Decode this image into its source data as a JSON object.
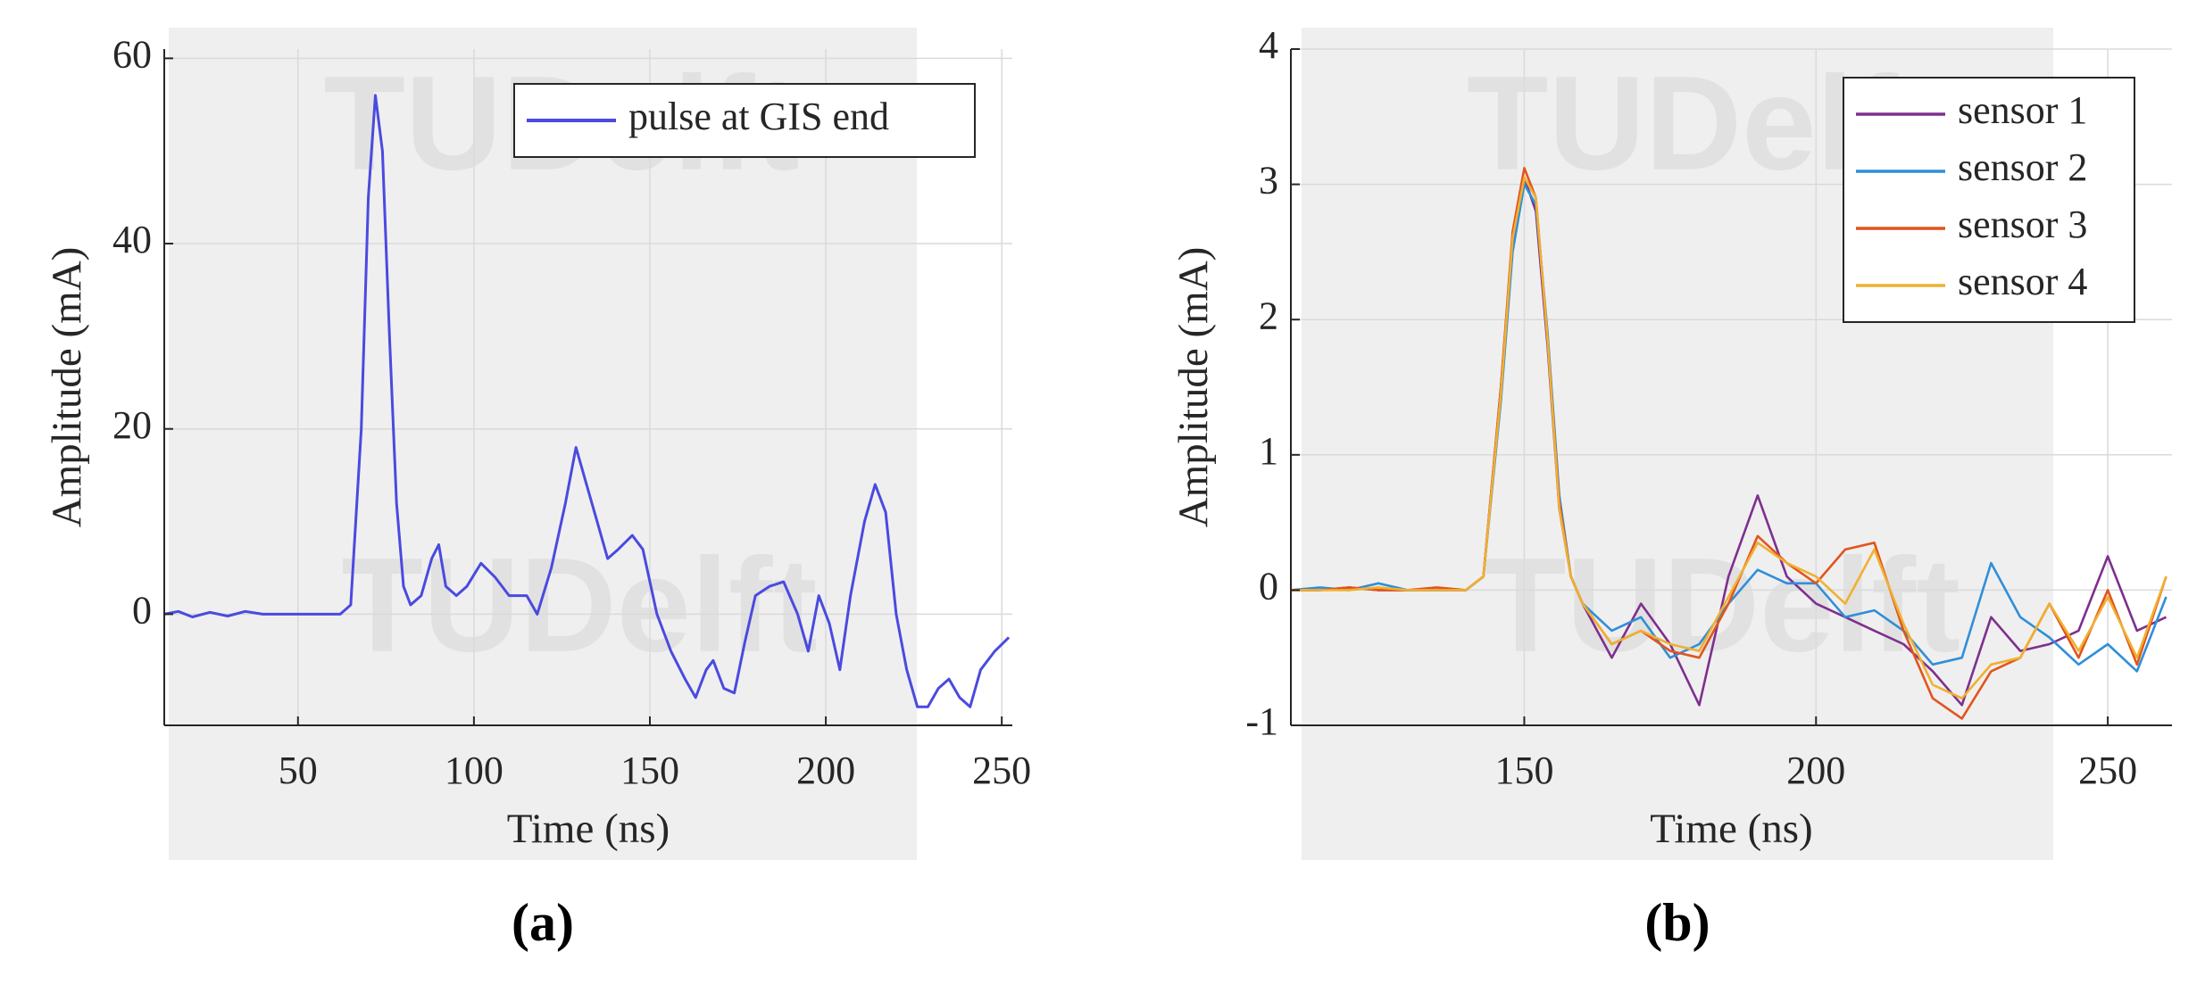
{
  "chart_data": [
    {
      "type": "line",
      "label": "(a)",
      "watermark": "TUDelft",
      "xlabel": "Time (ns)",
      "ylabel": "Amplitude (mA)",
      "xlim": [
        12,
        253
      ],
      "ylim": [
        -12,
        61
      ],
      "xticks": [
        50,
        100,
        150,
        200,
        250
      ],
      "yticks": [
        0,
        20,
        40,
        60
      ],
      "grid": true,
      "legend": "upper right",
      "x": [
        12,
        16,
        20,
        25,
        30,
        35,
        40,
        45,
        50,
        55,
        60,
        62,
        65,
        68,
        70,
        72,
        74,
        76,
        78,
        80,
        82,
        85,
        88,
        90,
        92,
        95,
        98,
        102,
        106,
        110,
        115,
        118,
        122,
        126,
        129,
        132,
        135,
        138,
        141,
        145,
        148,
        152,
        156,
        160,
        163,
        166,
        168,
        171,
        174,
        177,
        180,
        184,
        188,
        192,
        195,
        198,
        201,
        204,
        207,
        211,
        214,
        217,
        220,
        223,
        226,
        229,
        232,
        235,
        238,
        241,
        244,
        248,
        252
      ],
      "series": [
        {
          "name": "pulse at GIS end",
          "color": "#4a4ae0",
          "values": [
            0,
            0.3,
            -0.3,
            0.2,
            -0.2,
            0.3,
            0,
            0,
            0,
            0,
            0,
            0,
            1,
            20,
            45,
            56,
            50,
            30,
            12,
            3,
            1,
            2,
            6,
            7.5,
            3,
            2,
            3,
            5.5,
            4,
            2,
            2,
            0,
            5,
            12,
            18,
            14,
            10,
            6,
            7,
            8.5,
            7,
            0,
            -4,
            -7,
            -9,
            -6,
            -5,
            -8,
            -8.5,
            -3,
            2,
            3,
            3.5,
            0,
            -4,
            2,
            -1,
            -6,
            2,
            10,
            14,
            11,
            0,
            -6,
            -10,
            -10,
            -8,
            -7,
            -9,
            -10,
            -6,
            -4,
            -2.5
          ]
        }
      ]
    },
    {
      "type": "line",
      "label": "(b)",
      "watermark": "TUDelft",
      "xlabel": "Time (ns)",
      "ylabel": "Amplitude (mA)",
      "xlim": [
        110,
        261
      ],
      "ylim": [
        -1,
        4
      ],
      "xticks": [
        150,
        200,
        250
      ],
      "yticks": [
        -1,
        0,
        1,
        2,
        3,
        4
      ],
      "grid": true,
      "legend": "upper right",
      "x": [
        110,
        115,
        120,
        125,
        130,
        135,
        140,
        143,
        146,
        148,
        150,
        152,
        154,
        156,
        158,
        160,
        165,
        170,
        175,
        180,
        185,
        190,
        195,
        200,
        205,
        210,
        215,
        220,
        225,
        230,
        235,
        240,
        245,
        250,
        255,
        260
      ],
      "series": [
        {
          "name": "sensor 1",
          "color": "#7e2f8e",
          "values": [
            0,
            0,
            0.02,
            0,
            0,
            0,
            0,
            0.1,
            1.5,
            2.6,
            3.05,
            2.8,
            1.8,
            0.6,
            0.1,
            -0.1,
            -0.5,
            -0.1,
            -0.4,
            -0.85,
            0.1,
            0.7,
            0.1,
            -0.1,
            -0.2,
            -0.3,
            -0.4,
            -0.6,
            -0.85,
            -0.2,
            -0.45,
            -0.4,
            -0.3,
            0.25,
            -0.3,
            -0.2
          ]
        },
        {
          "name": "sensor 2",
          "color": "#2f8fd8",
          "values": [
            0,
            0.02,
            0,
            0.05,
            0,
            0,
            0,
            0.1,
            1.4,
            2.5,
            3.0,
            2.85,
            1.9,
            0.7,
            0.1,
            -0.1,
            -0.3,
            -0.2,
            -0.5,
            -0.4,
            -0.1,
            0.15,
            0.05,
            0.05,
            -0.2,
            -0.15,
            -0.3,
            -0.55,
            -0.5,
            0.2,
            -0.2,
            -0.35,
            -0.55,
            -0.4,
            -0.6,
            -0.05
          ]
        },
        {
          "name": "sensor 3",
          "color": "#e2541c",
          "values": [
            0,
            0,
            0.02,
            0,
            0,
            0.02,
            0,
            0.1,
            1.5,
            2.65,
            3.12,
            2.9,
            1.85,
            0.65,
            0.1,
            -0.1,
            -0.4,
            -0.3,
            -0.45,
            -0.5,
            -0.1,
            0.4,
            0.2,
            0.05,
            0.3,
            0.35,
            -0.3,
            -0.8,
            -0.95,
            -0.6,
            -0.5,
            -0.1,
            -0.5,
            0,
            -0.55,
            0.1
          ]
        },
        {
          "name": "sensor 4",
          "color": "#f0b030",
          "values": [
            0,
            0,
            0,
            0.02,
            0,
            0,
            0,
            0.1,
            1.45,
            2.6,
            3.05,
            2.9,
            1.85,
            0.6,
            0.1,
            -0.1,
            -0.4,
            -0.3,
            -0.4,
            -0.45,
            -0.05,
            0.35,
            0.2,
            0.1,
            -0.1,
            0.3,
            -0.25,
            -0.7,
            -0.8,
            -0.55,
            -0.5,
            -0.1,
            -0.45,
            -0.05,
            -0.5,
            0.1
          ]
        }
      ]
    }
  ]
}
